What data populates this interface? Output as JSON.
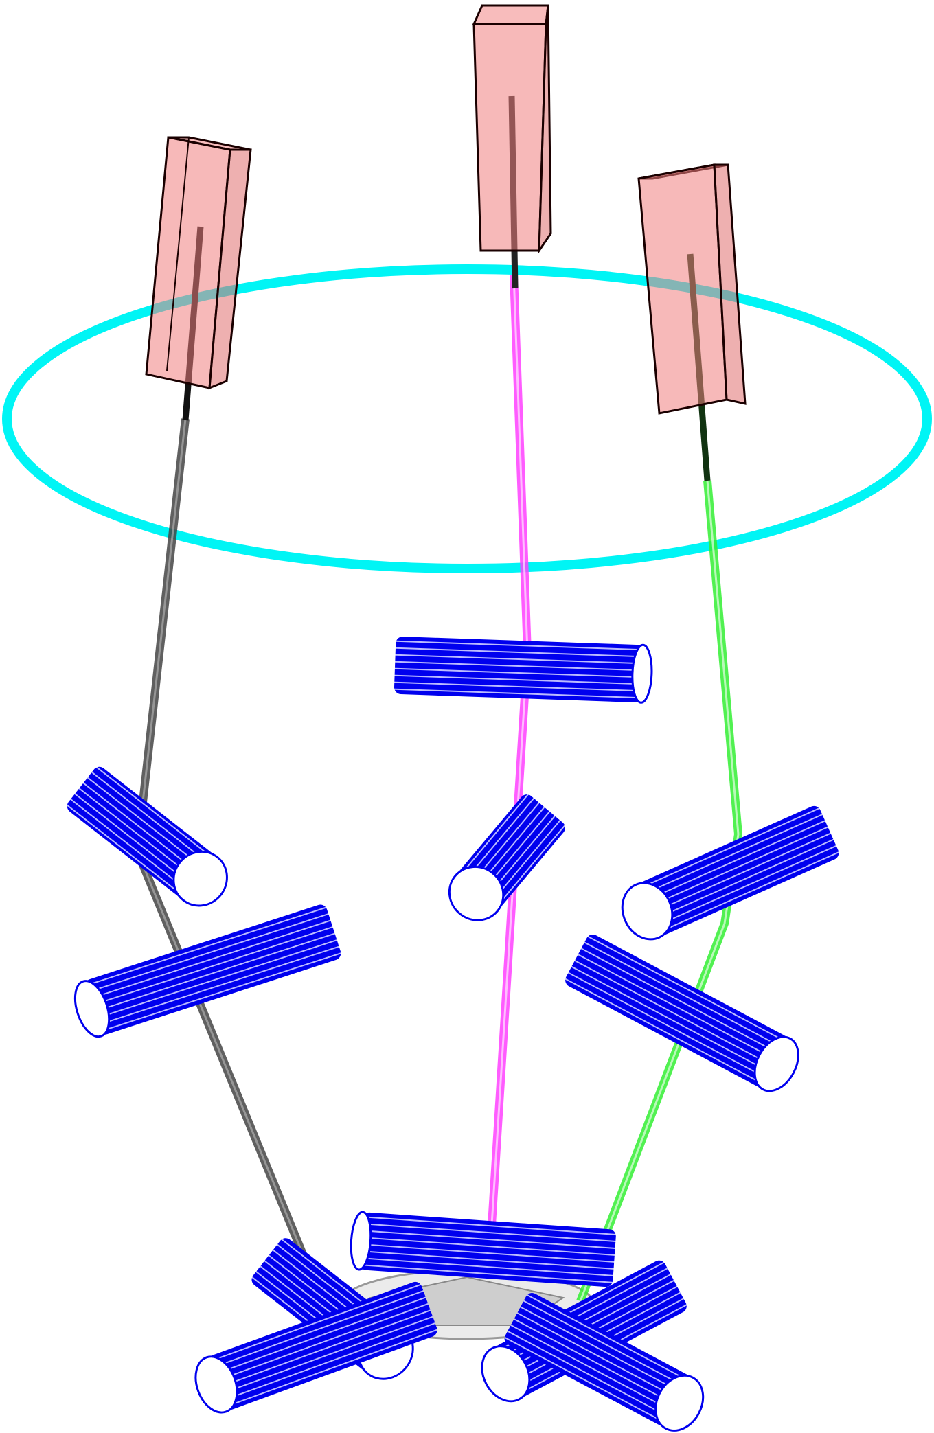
{
  "diagram": {
    "description_visible_text": "",
    "colors": {
      "background": "#ffffff",
      "ring": "#00f5f5",
      "actuator_fill": "#f08080",
      "actuator_edge": "#1a0000",
      "actuator_rod": "#3a0000",
      "strut_black": "#444444",
      "strut_magenta": "#ff40ff",
      "strut_green": "#33ee33",
      "roller": "#0000ee",
      "roller_hatch": "#bbbbff",
      "platform": "#cccccc"
    },
    "elements": {
      "ring": "cyan-ring",
      "actuators": [
        "left-actuator",
        "center-actuator",
        "right-actuator"
      ],
      "struts": [
        "black-strut",
        "magenta-strut",
        "green-strut"
      ],
      "rollers": [
        "roller-1",
        "roller-2",
        "roller-3",
        "roller-4",
        "roller-5",
        "roller-6",
        "roller-7",
        "roller-8",
        "roller-9",
        "roller-10",
        "roller-11"
      ],
      "platform": "bottom-platform"
    }
  }
}
